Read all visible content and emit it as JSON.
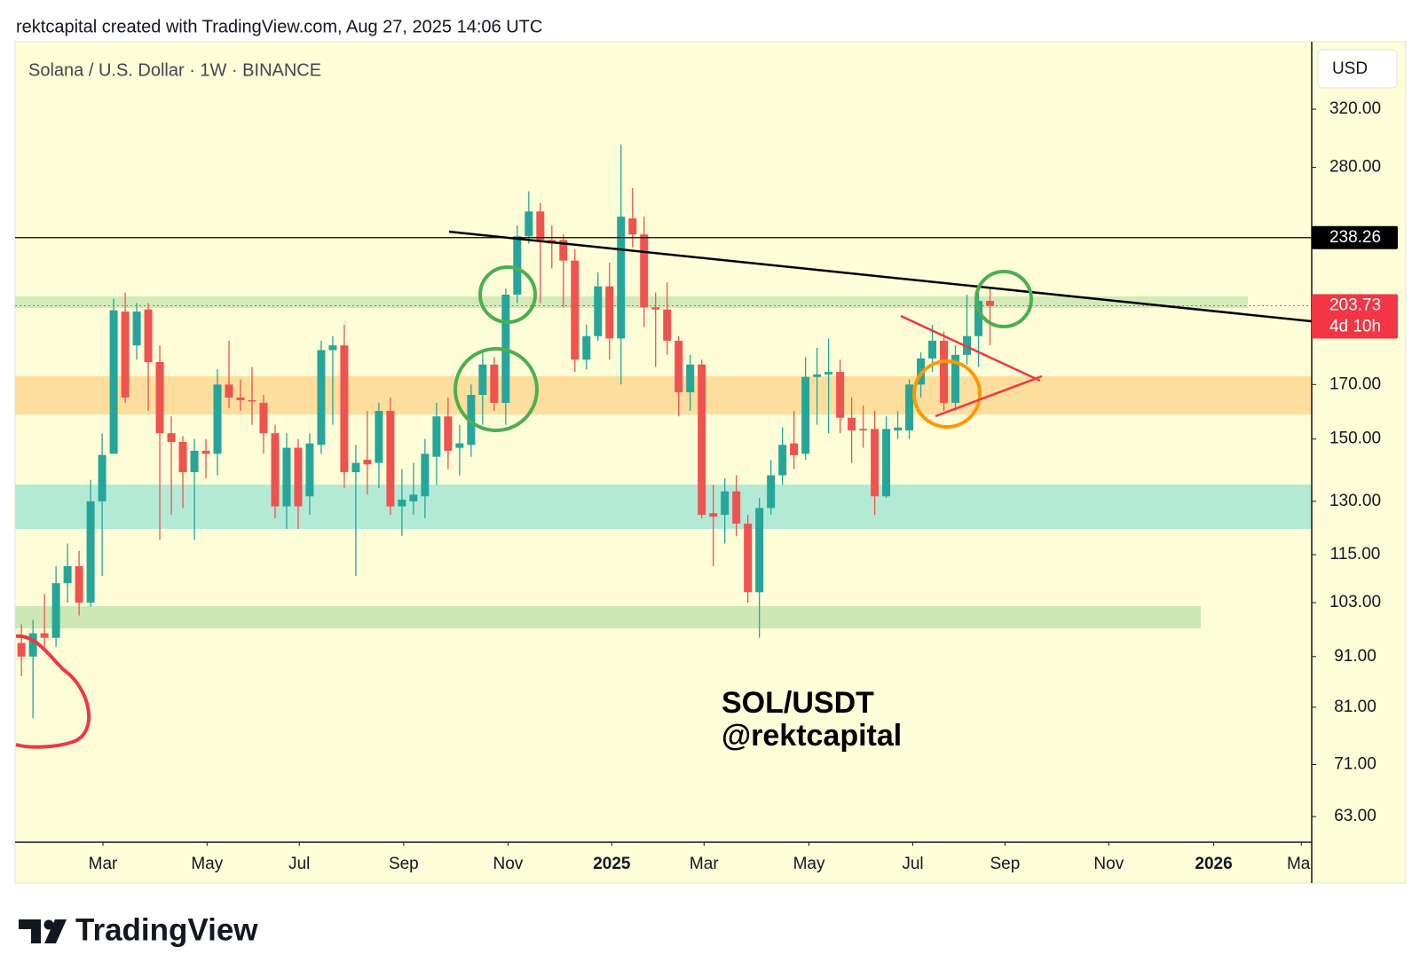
{
  "header": "rektcapital created with TradingView.com, Aug 27, 2025 14:06 UTC",
  "footer": {
    "logo": "TradingView"
  },
  "chart_data": {
    "type": "candlestick",
    "title": "Solana / U.S. Dollar · 1W · BINANCE",
    "currency": "USD",
    "log_scale": true,
    "up_color": "#26a69a",
    "down_color": "#ef5350",
    "ylim": [
      59.4,
      373.7
    ],
    "yticks": [
      {
        "value": 320,
        "label": "320.00"
      },
      {
        "value": 280,
        "label": "280.00"
      },
      {
        "value": 170,
        "label": "170.00"
      },
      {
        "value": 150,
        "label": "150.00"
      },
      {
        "value": 130,
        "label": "130.00"
      },
      {
        "value": 115,
        "label": "115.00"
      },
      {
        "value": 103,
        "label": "103.00"
      },
      {
        "value": 91,
        "label": "91.00"
      },
      {
        "value": 81,
        "label": "81.00"
      },
      {
        "value": 71,
        "label": "71.00"
      },
      {
        "value": 63,
        "label": "63.00"
      }
    ],
    "xlim": [
      -0.55,
      111.9
    ],
    "xticks": [
      {
        "value": 7.07,
        "label": "Mar"
      },
      {
        "value": 16.1,
        "label": "May"
      },
      {
        "value": 24.1,
        "label": "Jul"
      },
      {
        "value": 33.15,
        "label": "Sep"
      },
      {
        "value": 42.2,
        "label": "Nov"
      },
      {
        "value": 51.2,
        "label": "2025"
      },
      {
        "value": 59.2,
        "label": "Mar"
      },
      {
        "value": 68.3,
        "label": "May"
      },
      {
        "value": 77.3,
        "label": "Jul"
      },
      {
        "value": 85.3,
        "label": "Sep"
      },
      {
        "value": 94.3,
        "label": "Nov"
      },
      {
        "value": 103.4,
        "label": "2026"
      },
      {
        "value": 111,
        "label": "Mar"
      }
    ],
    "level": 238.26,
    "last_price": 203.73,
    "countdown": "4d 10h",
    "annotation": [
      "SOL/USDT",
      "@rektcapital"
    ],
    "series": {
      "open": [
        93.9,
        91,
        96,
        95,
        107.7,
        112,
        103,
        130,
        145,
        201,
        186,
        202,
        179,
        152,
        149,
        139,
        146,
        145,
        170,
        165,
        164,
        163,
        152,
        128.5,
        147,
        131.5,
        148,
        184,
        186,
        139,
        143,
        142,
        160,
        128.5,
        130,
        131.5,
        144,
        158,
        147,
        148,
        166,
        178,
        163,
        209,
        239,
        253,
        237,
        237,
        226,
        180,
        190,
        213,
        189,
        249,
        240,
        203,
        202,
        188,
        167,
        178,
        126.5,
        126,
        133,
        123.5,
        105.5,
        128,
        138,
        148.5,
        145,
        173,
        174,
        175,
        157.5,
        153.5,
        153.5,
        131.5,
        153,
        153,
        170,
        180.5,
        188,
        163,
        182,
        190,
        206
      ],
      "high": [
        98,
        99,
        105,
        112,
        118,
        116,
        136.6,
        152,
        207,
        210,
        205,
        205,
        186,
        158,
        151,
        150,
        150,
        176,
        188,
        172,
        177,
        166,
        155,
        152,
        150,
        152,
        188,
        190,
        195,
        148,
        160,
        163,
        165,
        140,
        142,
        150,
        163,
        165,
        155,
        170,
        184,
        181,
        212,
        245,
        265,
        258,
        245,
        240,
        232,
        195,
        220,
        225,
        295,
        267,
        250,
        210,
        215,
        190,
        182,
        180,
        135,
        137,
        138,
        126,
        131,
        143,
        154,
        160,
        181,
        185,
        189,
        180,
        165,
        162,
        160,
        158,
        160,
        172,
        183,
        195,
        192,
        186,
        209,
        210,
        212
      ],
      "low": [
        87,
        79,
        93,
        93,
        103,
        100,
        102,
        109.5,
        145,
        163,
        180,
        160,
        119,
        126,
        128,
        119,
        137,
        138,
        161,
        160,
        155,
        145,
        125,
        122,
        122,
        126,
        145,
        155,
        134,
        109.5,
        132,
        134,
        126,
        120,
        126,
        125,
        135,
        140,
        138,
        144,
        155,
        160,
        155,
        205,
        235,
        205,
        222,
        203,
        175,
        176,
        188,
        180,
        170,
        233,
        194,
        177,
        182,
        158,
        160,
        125,
        112,
        118,
        120,
        103,
        95,
        126,
        135,
        140,
        143,
        155,
        152,
        152,
        142,
        147,
        126,
        131,
        150,
        150,
        165,
        175,
        160,
        160,
        178,
        177,
        186
      ],
      "close": [
        91,
        96,
        95,
        107.7,
        112,
        103,
        130,
        144.6,
        201.6,
        165,
        201,
        179,
        152,
        149,
        139,
        146,
        145,
        170,
        165,
        164,
        163.5,
        152,
        128.5,
        147,
        128.5,
        148.5,
        184,
        186,
        139,
        142,
        141.5,
        160,
        128.5,
        130.5,
        132,
        145,
        158,
        146,
        148.5,
        166,
        178,
        163,
        209,
        239,
        253,
        237,
        235,
        226,
        180,
        190,
        213,
        189,
        250,
        240,
        203,
        202,
        188,
        167,
        178,
        126,
        125.5,
        133,
        123.5,
        105.5,
        128,
        138,
        148,
        144.5,
        173,
        174,
        175,
        157.5,
        153,
        153,
        131.5,
        153.5,
        154,
        170,
        180.5,
        188,
        163,
        182,
        190,
        206,
        203.73
      ]
    }
  }
}
